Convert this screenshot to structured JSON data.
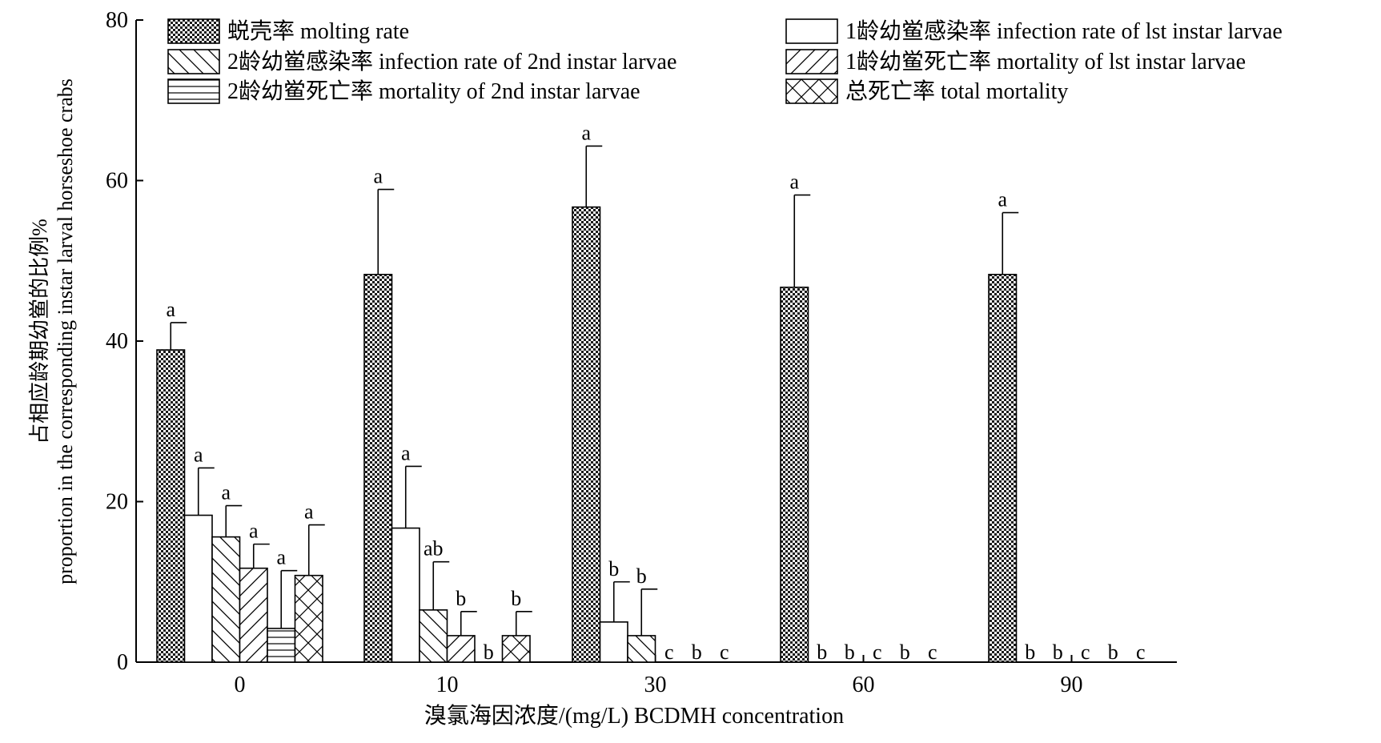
{
  "chart_data": {
    "type": "bar",
    "xlabel": "溴氯海因浓度/(mg/L) BCDMH concentration",
    "ylabel_line1": "占相应龄期幼鲎的比例%",
    "ylabel_line2": "proportion in the corresponding instar larval horseshoe crabs",
    "ylim": [
      0,
      80
    ],
    "yticks": [
      "0",
      "20",
      "40",
      "60",
      "80"
    ],
    "categories": [
      "0",
      "10",
      "30",
      "60",
      "90"
    ],
    "grid": false,
    "legend_position": "top",
    "series": [
      {
        "name": "蜕壳率 molting rate",
        "pattern": "checker",
        "values": [
          38.9,
          48.3,
          56.7,
          46.7,
          48.3
        ],
        "errors": [
          3.4,
          10.6,
          7.6,
          11.5,
          7.7
        ],
        "labels": [
          "a",
          "a",
          "a",
          "a",
          "a"
        ]
      },
      {
        "name": "1龄幼鲎感染率 infection rate of lst instar larvae",
        "pattern": "blank",
        "values": [
          18.3,
          16.7,
          5.0,
          0,
          0
        ],
        "errors": [
          5.9,
          7.7,
          5.0,
          0,
          0
        ],
        "labels": [
          "a",
          "a",
          "b",
          "b",
          "b"
        ]
      },
      {
        "name": "2龄幼鲎感染率 infection rate of 2nd instar larvae",
        "pattern": "backslash",
        "values": [
          15.6,
          6.5,
          3.3,
          0,
          0
        ],
        "errors": [
          3.9,
          6.0,
          5.8,
          0,
          0
        ],
        "labels": [
          "a",
          "ab",
          "b",
          "b",
          "b"
        ]
      },
      {
        "name": "1龄幼鲎死亡率 mortality of lst instar larvae",
        "pattern": "slash",
        "values": [
          11.7,
          3.3,
          0,
          0,
          0
        ],
        "errors": [
          3.0,
          3.0,
          0,
          0,
          0
        ],
        "labels": [
          "a",
          "b",
          "c",
          "c",
          "c"
        ]
      },
      {
        "name": "2龄幼鲎死亡率 mortality of 2nd instar larvae",
        "pattern": "horizontal",
        "values": [
          4.2,
          0,
          0,
          0,
          0
        ],
        "errors": [
          7.2,
          0,
          0,
          0,
          0
        ],
        "labels": [
          "a",
          "b",
          "b",
          "b",
          "b"
        ]
      },
      {
        "name": "总死亡率 total mortality",
        "pattern": "cross",
        "values": [
          10.8,
          3.3,
          0,
          0,
          0
        ],
        "errors": [
          6.3,
          3.0,
          0,
          0,
          0
        ],
        "labels": [
          "a",
          "b",
          "c",
          "c",
          "c"
        ]
      }
    ],
    "legend_layout": [
      [
        0,
        1
      ],
      [
        2,
        3
      ],
      [
        4,
        5
      ]
    ]
  }
}
